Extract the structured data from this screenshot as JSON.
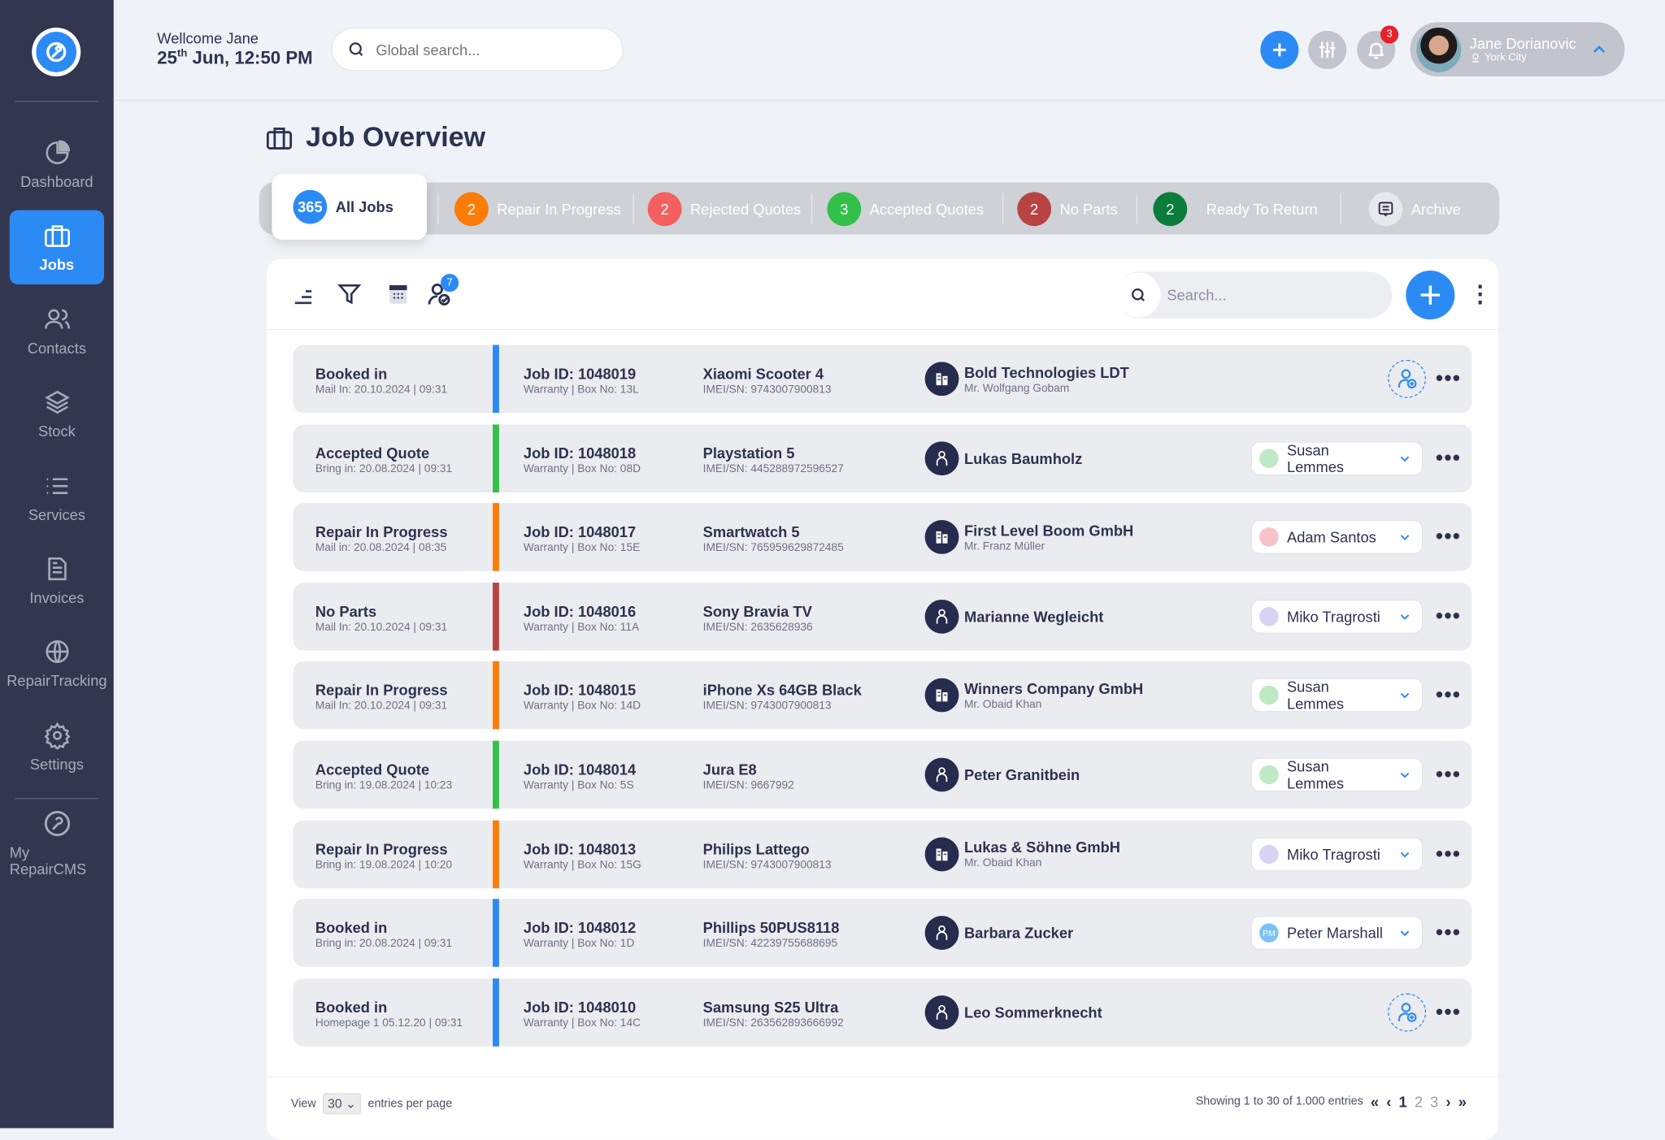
{
  "sidebar": {
    "items": [
      {
        "label": "Dashboard",
        "icon": "pie-chart-icon"
      },
      {
        "label": "Jobs",
        "icon": "briefcase-icon",
        "active": true
      },
      {
        "label": "Contacts",
        "icon": "users-icon"
      },
      {
        "label": "Stock",
        "icon": "layers-icon"
      },
      {
        "label": "Services",
        "icon": "list-icon"
      },
      {
        "label": "Invoices",
        "icon": "document-icon"
      },
      {
        "label": "RepairTracking",
        "icon": "globe-icon"
      },
      {
        "label": "Settings",
        "icon": "gear-icon"
      }
    ],
    "bottom": {
      "label": "My RepairCMS",
      "icon": "wrench-icon"
    }
  },
  "header": {
    "welcome": "Wellcome Jane",
    "date_day": "25",
    "date_suffix": "th",
    "date_rest": "Jun, 12:50 PM",
    "search_placeholder": "Global search...",
    "notifications": "3",
    "user": {
      "name": "Jane Dorianovic",
      "location": "York City"
    }
  },
  "page": {
    "title": "Job Overview"
  },
  "tabs": [
    {
      "count": "365",
      "label": "All Jobs",
      "color": "#2c8af5"
    },
    {
      "count": "2",
      "label": "Repair In Progress",
      "color": "#fb7d08"
    },
    {
      "count": "2",
      "label": "Rejected Quotes",
      "color": "#f45f5f"
    },
    {
      "count": "3",
      "label": "Accepted Quotes",
      "color": "#32c04a"
    },
    {
      "count": "2",
      "label": "No Parts",
      "color": "#b84343"
    },
    {
      "count": "2",
      "label": "Ready To Return",
      "color": "#0b7c3c"
    },
    {
      "label": "Archive"
    }
  ],
  "toolbar": {
    "badge": "7",
    "search_placeholder": "Search..."
  },
  "colors": {
    "Booked in": "#2c8af5",
    "Accepted Quote": "#32c04a",
    "Repair In Progress": "#fb7d08",
    "No Parts": "#b84343"
  },
  "jobs": [
    {
      "status": "Booked in",
      "date": "Mail In: 20.10.2024 |  09:31",
      "job": "Job ID: 1048019",
      "box": "Warranty | Box No: 13L",
      "device": "Xiaomi Scooter 4",
      "imei": "IMEI/SN: 9743007900813",
      "customer": "Bold Technologies LDT",
      "contact": "Mr. Wolfgang Gobam",
      "type": "company",
      "assignee": null
    },
    {
      "status": "Accepted Quote",
      "date": "Bring in: 20.08.2024 |  09:31",
      "job": "Job ID: 1048018",
      "box": "Warranty | Box No: 08D",
      "device": "Playstation 5",
      "imei": "IMEI/SN: 445288972596527",
      "customer": "Lukas Baumholz",
      "contact": null,
      "type": "person",
      "assignee": "Susan Lemmes",
      "av": "#bfe8c4"
    },
    {
      "status": "Repair In Progress",
      "date": "Mail in: 20.08.2024 |  08:35",
      "job": "Job ID: 1048017",
      "box": "Warranty | Box No: 15E",
      "device": "Smartwatch 5",
      "imei": "IMEI/SN: 765959629872485",
      "customer": "First Level Boom GmbH",
      "contact": "Mr. Franz Müller",
      "type": "company",
      "assignee": "Adam Santos",
      "av": "#f7c3c8"
    },
    {
      "status": "No Parts",
      "date": "Mail In: 20.10.2024 |  09:31",
      "job": "Job ID: 1048016",
      "box": "Warranty | Box No: 11A",
      "device": "Sony Bravia TV",
      "imei": "IMEI/SN: 2635628936",
      "customer": "Marianne Wegleicht",
      "contact": null,
      "type": "person",
      "assignee": "Miko Tragrosti",
      "av": "#d9d2f3"
    },
    {
      "status": "Repair In Progress",
      "date": "Mail In: 20.10.2024 |  09:31",
      "job": "Job ID: 1048015",
      "box": "Warranty | Box No: 14D",
      "device": "iPhone Xs 64GB Black",
      "imei": "IMEI/SN: 9743007900813",
      "customer": "Winners Company GmbH",
      "contact": "Mr. Obaid Khan",
      "type": "company",
      "assignee": "Susan Lemmes",
      "av": "#bfe8c4"
    },
    {
      "status": "Accepted Quote",
      "date": "Bring in: 19.08.2024 |  10:23",
      "job": "Job ID: 1048014",
      "box": "Warranty | Box No: 5S",
      "device": "Jura E8",
      "imei": "IMEI/SN: 9667992",
      "customer": "Peter Granitbein",
      "contact": null,
      "type": "person",
      "assignee": "Susan Lemmes",
      "av": "#bfe8c4"
    },
    {
      "status": "Repair In Progress",
      "date": "Bring in: 19.08.2024 |  10:20",
      "job": "Job ID: 1048013",
      "box": "Warranty | Box No: 15G",
      "device": "Philips Lattego",
      "imei": "IMEI/SN: 9743007900813",
      "customer": "Lukas & Söhne GmbH",
      "contact": "Mr. Obaid Khan",
      "type": "company",
      "assignee": "Miko Tragrosti",
      "av": "#d9d2f3"
    },
    {
      "status": "Booked in",
      "date": "Bring in: 20.08.2024 |  09:31",
      "job": "Job ID: 1048012",
      "box": "Warranty | Box No: 1D",
      "device": "Phillips 50PUS8118",
      "imei": "IMEI/SN: 42239755688695",
      "customer": "Barbara Zucker",
      "contact": null,
      "type": "person",
      "assignee": "Peter Marshall",
      "initials": "PM",
      "av": "#7cc2f5"
    },
    {
      "status": "Booked in",
      "date": "Homepage 1    05.12.20 |  09:31",
      "job": "Job ID: 1048010",
      "box": "Warranty | Box No: 14C",
      "device": "Samsung S25 Ultra",
      "imei": "IMEI/SN: 263562893666992",
      "customer": "Leo Sommerknecht",
      "contact": null,
      "type": "person",
      "assignee": null
    }
  ],
  "footer": {
    "view": "View",
    "per_page_value": "30",
    "per_page_label": "entries per page",
    "showing": "Showing 1 to 30 of 1.000 entries",
    "pages": [
      "1",
      "2",
      "3"
    ],
    "current_page": "1"
  }
}
